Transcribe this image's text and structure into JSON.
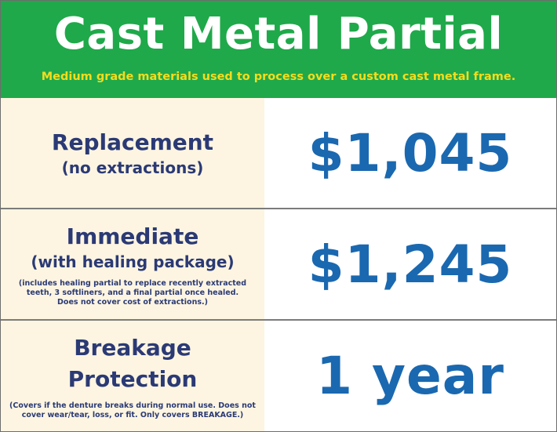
{
  "header": {
    "title": "Cast Metal Partial",
    "subtitle": "Medium grade materials used to process over a custom cast metal frame."
  },
  "rows": [
    {
      "label": "Replacement",
      "sublabel": "(no extractions)",
      "value": "$1,045"
    },
    {
      "label": "Immediate",
      "sublabel": "(with healing package)",
      "note": "(includes healing partial to replace recently extracted\nteeth, 3 softliners, and a final partial once healed.\nDoes not cover cost of extractions.)",
      "value": "$1,245"
    },
    {
      "label": "Breakage\nProtection",
      "note": "(Covers if the denture breaks during normal use. Does not\ncover wear/tear, loss, or fit. Only covers BREAKAGE.)",
      "value": "1 year"
    }
  ],
  "colors": {
    "header_bg": "#1fa94a",
    "title": "#ffffff",
    "subtitle": "#f4dc1e",
    "label": "#2b3a75",
    "value": "#1a68b0",
    "left_bg": "#fdf5e1"
  }
}
